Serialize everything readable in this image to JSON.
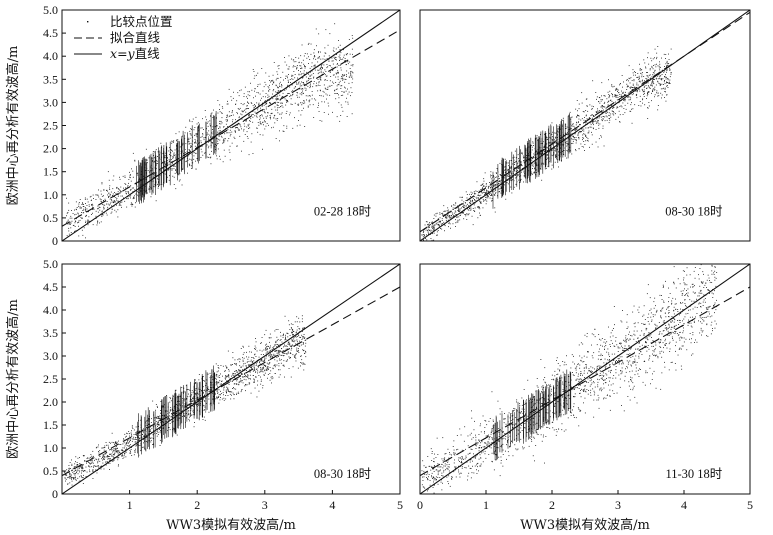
{
  "figure": {
    "xlabel": "WW3模拟有效波高/m",
    "ylabel": "欧洲中心再分析有效波高/m",
    "legend": {
      "placement": "top-left of first panel",
      "items": [
        {
          "label": "比较点位置",
          "style": "dots"
        },
        {
          "label": "拟合直线",
          "style": "dashed"
        },
        {
          "label": "x=y直线",
          "style": "solid"
        }
      ]
    }
  },
  "chart_data": [
    {
      "type": "scatter",
      "panel": "top-left",
      "annotation": "02-28  18时",
      "xlim": [
        0,
        5
      ],
      "ylim": [
        0,
        5
      ],
      "xticks": [],
      "yticks": [
        "0",
        "0.5",
        "1.0",
        "1.5",
        "2.0",
        "2.5",
        "3.0",
        "3.5",
        "4.0",
        "4.5",
        "5.0"
      ],
      "ylabel": "欧洲中心再分析有效波高/m",
      "xlabel": "",
      "series": [
        {
          "name": "比较点位置",
          "kind": "points",
          "center_line": [
            [
              0.1,
              0.45
            ],
            [
              0.8,
              0.95
            ],
            [
              1.5,
              1.6
            ],
            [
              2.2,
              2.3
            ],
            [
              3.0,
              3.0
            ],
            [
              3.8,
              3.6
            ]
          ],
          "spread": 0.35,
          "x_range": [
            0.05,
            4.3
          ]
        },
        {
          "name": "拟合直线",
          "kind": "line",
          "slope": 0.85,
          "intercept": 0.32,
          "x_range": [
            0,
            5
          ]
        },
        {
          "name": "x=y直线",
          "kind": "line",
          "slope": 1,
          "intercept": 0,
          "x_range": [
            0,
            5
          ]
        }
      ]
    },
    {
      "type": "scatter",
      "panel": "top-right",
      "annotation": "08-30  18时",
      "xlim": [
        0,
        5
      ],
      "ylim": [
        0,
        5
      ],
      "xticks": [],
      "yticks": [],
      "ylabel": "",
      "xlabel": "",
      "series": [
        {
          "name": "比较点位置",
          "kind": "points",
          "center_line": [
            [
              0.05,
              0.2
            ],
            [
              0.8,
              0.85
            ],
            [
              1.6,
              1.7
            ],
            [
              2.4,
              2.4
            ],
            [
              3.2,
              3.3
            ],
            [
              3.7,
              3.6
            ]
          ],
          "spread": 0.25,
          "x_range": [
            0.02,
            3.8
          ]
        },
        {
          "name": "拟合直线",
          "kind": "line",
          "slope": 0.95,
          "intercept": 0.2,
          "x_range": [
            0,
            5
          ]
        },
        {
          "name": "x=y直线",
          "kind": "line",
          "slope": 1,
          "intercept": 0,
          "x_range": [
            0,
            5
          ]
        }
      ]
    },
    {
      "type": "scatter",
      "panel": "bottom-left",
      "annotation": "08-30  18时",
      "xlim": [
        0,
        5
      ],
      "ylim": [
        0,
        5
      ],
      "xticks": [
        "1",
        "2",
        "3",
        "4",
        "5"
      ],
      "yticks": [
        "0",
        "0.5",
        "1.0",
        "1.5",
        "2.0",
        "2.5",
        "3.0",
        "3.5",
        "4.0",
        "4.5",
        "5.0"
      ],
      "ylabel": "欧洲中心再分析有效波高/m",
      "xlabel": "WW3模拟有效波高/m",
      "series": [
        {
          "name": "比较点位置",
          "kind": "points",
          "center_line": [
            [
              0.05,
              0.4
            ],
            [
              0.8,
              0.95
            ],
            [
              1.6,
              1.7
            ],
            [
              2.3,
              2.35
            ],
            [
              3.0,
              2.9
            ],
            [
              3.4,
              3.3
            ]
          ],
          "spread": 0.25,
          "x_range": [
            0.02,
            3.6
          ]
        },
        {
          "name": "拟合直线",
          "kind": "line",
          "slope": 0.82,
          "intercept": 0.4,
          "x_range": [
            0,
            5
          ]
        },
        {
          "name": "x=y直线",
          "kind": "line",
          "slope": 1,
          "intercept": 0,
          "x_range": [
            0,
            5
          ]
        }
      ]
    },
    {
      "type": "scatter",
      "panel": "bottom-right",
      "annotation": "11-30  18时",
      "xlim": [
        0,
        5
      ],
      "ylim": [
        0,
        5
      ],
      "xticks": [
        "0",
        "1",
        "2",
        "3",
        "4",
        "5"
      ],
      "yticks": [],
      "ylabel": "",
      "xlabel": "WW3模拟有效波高/m",
      "series": [
        {
          "name": "比较点位置",
          "kind": "points",
          "center_line": [
            [
              0.05,
              0.35
            ],
            [
              0.9,
              1.0
            ],
            [
              1.8,
              1.8
            ],
            [
              2.6,
              2.6
            ],
            [
              3.4,
              3.3
            ],
            [
              4.4,
              4.4
            ]
          ],
          "spread": 0.45,
          "x_range": [
            0.02,
            4.5
          ]
        },
        {
          "name": "拟合直线",
          "kind": "line",
          "slope": 0.82,
          "intercept": 0.4,
          "x_range": [
            0,
            5
          ]
        },
        {
          "name": "x=y直线",
          "kind": "line",
          "slope": 1,
          "intercept": 0,
          "x_range": [
            0,
            5
          ]
        }
      ]
    }
  ]
}
